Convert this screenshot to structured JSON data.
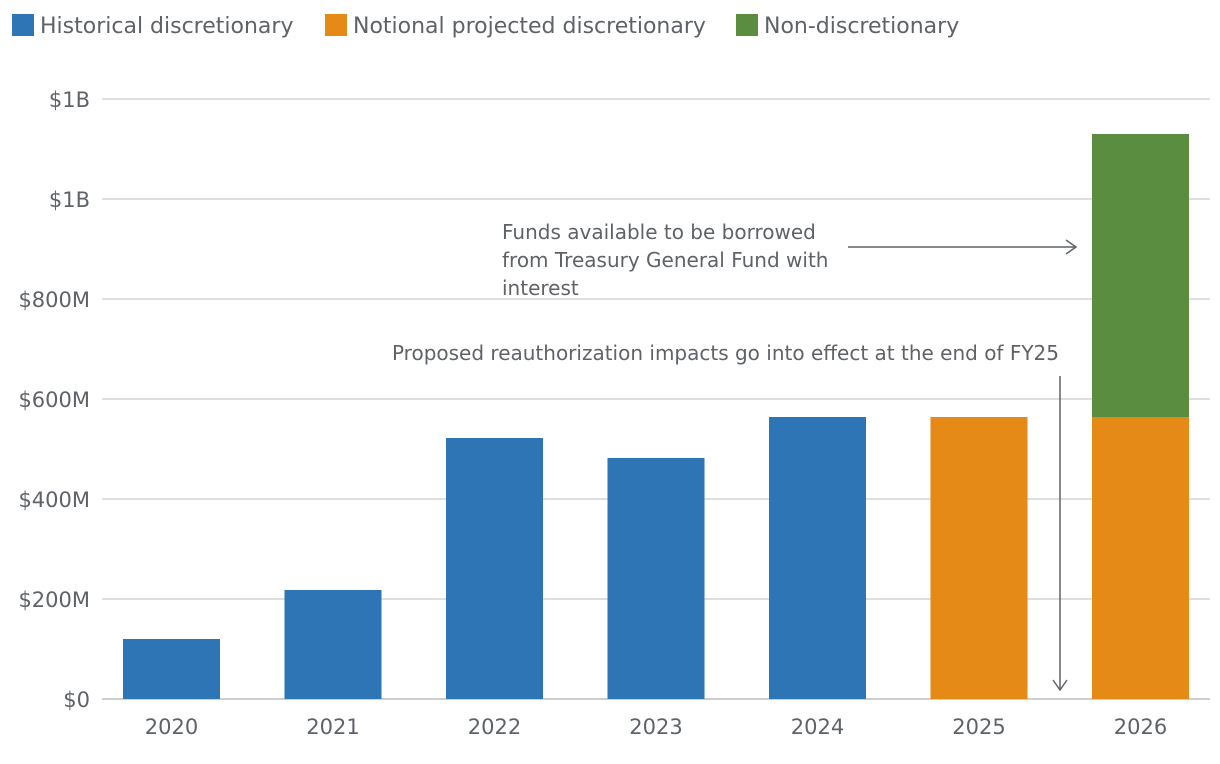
{
  "chart_data": {
    "type": "bar",
    "stacked": true,
    "title": "",
    "xlabel": "",
    "ylabel": "",
    "categories": [
      "2020",
      "2021",
      "2022",
      "2023",
      "2024",
      "2025",
      "2026"
    ],
    "series": [
      {
        "name": "Historical discretionary",
        "color": "#2e75b6",
        "values": [
          120,
          218,
          522,
          482,
          564,
          0,
          0
        ]
      },
      {
        "name": "Notional projected discretionary",
        "color": "#e58a17",
        "values": [
          0,
          0,
          0,
          0,
          0,
          564,
          564
        ]
      },
      {
        "name": "Non-discretionary",
        "color": "#5b8d41",
        "values": [
          0,
          0,
          0,
          0,
          0,
          0,
          566
        ]
      }
    ],
    "units": "millions of dollars",
    "ylim": [
      0,
      1200
    ],
    "yticks": [
      0,
      200,
      400,
      600,
      800,
      1000,
      1200
    ],
    "ytick_labels": [
      "$0",
      "$200M",
      "$400M",
      "$600M",
      "$800M",
      "$1B",
      "$1B"
    ],
    "grid": "horizontal",
    "legend_position": "top-left",
    "annotations": [
      {
        "lines": [
          "Funds available to be borrowed",
          "from Treasury General Fund with",
          "interest"
        ],
        "arrow": "right",
        "points_to": "2026"
      },
      {
        "lines": [
          "Proposed reauthorization impacts go into effect at the end of FY25"
        ],
        "arrow": "down",
        "points_to": "between 2025 and 2026"
      }
    ]
  }
}
